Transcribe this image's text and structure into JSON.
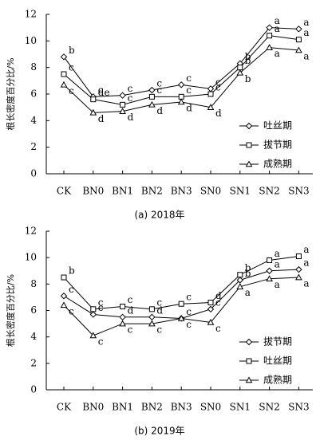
{
  "chart_data": [
    {
      "type": "line",
      "title": "(a) 2018年",
      "y_label": "根长密度百分比/%",
      "categories": [
        "CK",
        "BN0",
        "BN1",
        "BN2",
        "BN3",
        "SN0",
        "SN1",
        "SN2",
        "SN3"
      ],
      "ylim": [
        0,
        12
      ],
      "yticks": [
        0,
        2,
        4,
        6,
        8,
        10,
        12
      ],
      "legend": "lower right",
      "series": [
        {
          "name": "吐丝期",
          "marker": "diamond",
          "color": "#000000",
          "values": [
            8.8,
            5.8,
            5.9,
            6.3,
            6.7,
            6.4,
            8.3,
            11.0,
            10.9
          ],
          "letters": [
            "b",
            "c",
            "c",
            "c",
            "c",
            "c",
            "b",
            "a",
            "a"
          ]
        },
        {
          "name": "拔节期",
          "marker": "square",
          "color": "#000000",
          "values": [
            7.5,
            5.6,
            5.2,
            5.8,
            5.8,
            6.0,
            8.0,
            10.4,
            10.1
          ],
          "letters": [
            "c",
            "de",
            "c",
            "c",
            "c",
            "c",
            "b",
            "a",
            "a"
          ]
        },
        {
          "name": "成熟期",
          "marker": "triangle",
          "color": "#000000",
          "values": [
            6.7,
            4.6,
            4.7,
            5.2,
            5.4,
            5.0,
            7.6,
            9.5,
            9.3
          ],
          "letters": [
            "c",
            "d",
            "d",
            "d",
            "d",
            "d",
            "b",
            "a",
            "a"
          ]
        }
      ]
    },
    {
      "type": "line",
      "title": "(b) 2019年",
      "y_label": "根长密度百分比/%",
      "categories": [
        "CK",
        "BN0",
        "BN1",
        "BN2",
        "BN3",
        "SN0",
        "SN1",
        "SN2",
        "SN3"
      ],
      "ylim": [
        0,
        12
      ],
      "yticks": [
        0,
        2,
        4,
        6,
        8,
        10,
        12
      ],
      "legend": "lower right",
      "series": [
        {
          "name": "拔节期",
          "marker": "diamond",
          "color": "#000000",
          "values": [
            7.1,
            5.7,
            5.5,
            5.5,
            5.4,
            6.1,
            8.3,
            9.0,
            9.1
          ],
          "letters": [
            "c",
            "c",
            "d",
            "d",
            "c",
            "c",
            "b",
            "a",
            "a"
          ]
        },
        {
          "name": "吐丝期",
          "marker": "square",
          "color": "#000000",
          "values": [
            8.5,
            6.1,
            6.3,
            6.1,
            6.5,
            6.6,
            8.7,
            9.8,
            10.1
          ],
          "letters": [
            "b",
            "c",
            "c",
            "c",
            "c",
            "d",
            "b",
            "a",
            "a"
          ]
        },
        {
          "name": "成熟期",
          "marker": "triangle",
          "color": "#000000",
          "values": [
            6.4,
            4.1,
            5.0,
            5.0,
            5.4,
            5.1,
            7.8,
            8.4,
            8.5
          ],
          "letters": [
            "c",
            "c",
            "c",
            "c",
            "c",
            "c",
            "a",
            "a",
            "a"
          ]
        }
      ]
    }
  ]
}
